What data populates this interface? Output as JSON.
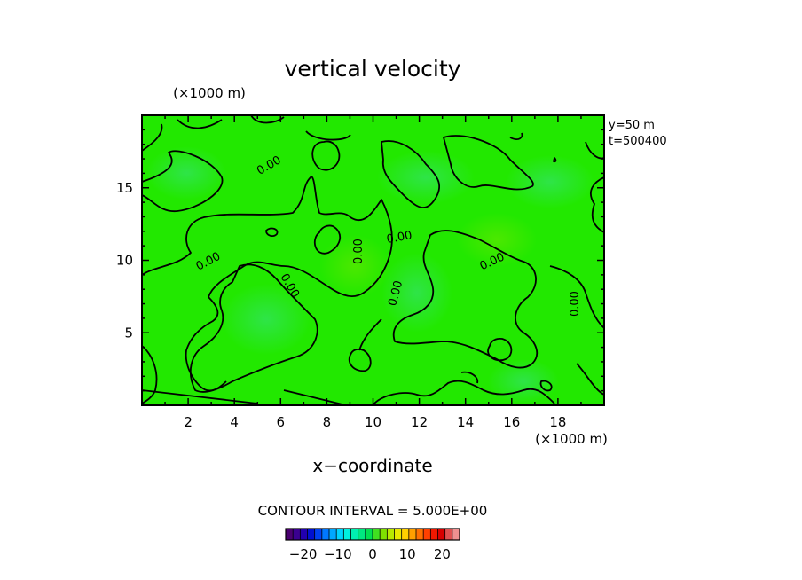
{
  "chart_data": {
    "type": "heatmap",
    "title": "vertical velocity",
    "xlabel": "x−coordinate",
    "ylabel": "",
    "x_unit": "(×1000 m)",
    "y_unit": "(×1000 m)",
    "xlim": [
      0,
      20
    ],
    "ylim": [
      0,
      20
    ],
    "x_ticks": [
      "2",
      "4",
      "6",
      "8",
      "10",
      "12",
      "14",
      "16",
      "18"
    ],
    "y_ticks": [
      "5",
      "10",
      "15"
    ],
    "info": [
      "y=50 m",
      "t=500400"
    ],
    "contour_interval_label": "CONTOUR INTERVAL = 5.000E+00",
    "contour_level": 0,
    "contour_labels": [
      "0.00",
      "0.00",
      "0.00",
      "0.00",
      "0.00",
      "0.00",
      "0.00",
      "0.00"
    ],
    "field_note": "near-zero field everywhere, green shading",
    "colorbar": {
      "range": [
        -25,
        25
      ],
      "tick_labels": [
        "−20",
        "−10",
        "0",
        "10",
        "20"
      ],
      "tick_values": [
        -20,
        -10,
        0,
        10,
        20
      ],
      "colors": [
        "#4a0070",
        "#3a0090",
        "#2200b0",
        "#0010d0",
        "#0040f0",
        "#0078ff",
        "#00a8ff",
        "#00d4ff",
        "#00f0e0",
        "#00f0b0",
        "#00e880",
        "#00e050",
        "#40e020",
        "#80e000",
        "#b8e800",
        "#e8e800",
        "#ffd000",
        "#ffa000",
        "#ff7000",
        "#ff4000",
        "#f01800",
        "#d80000",
        "#e05050",
        "#f09090"
      ]
    },
    "field_colors": {
      "base": "#22e800",
      "cyan_tint": "#3ee0a0"
    }
  }
}
